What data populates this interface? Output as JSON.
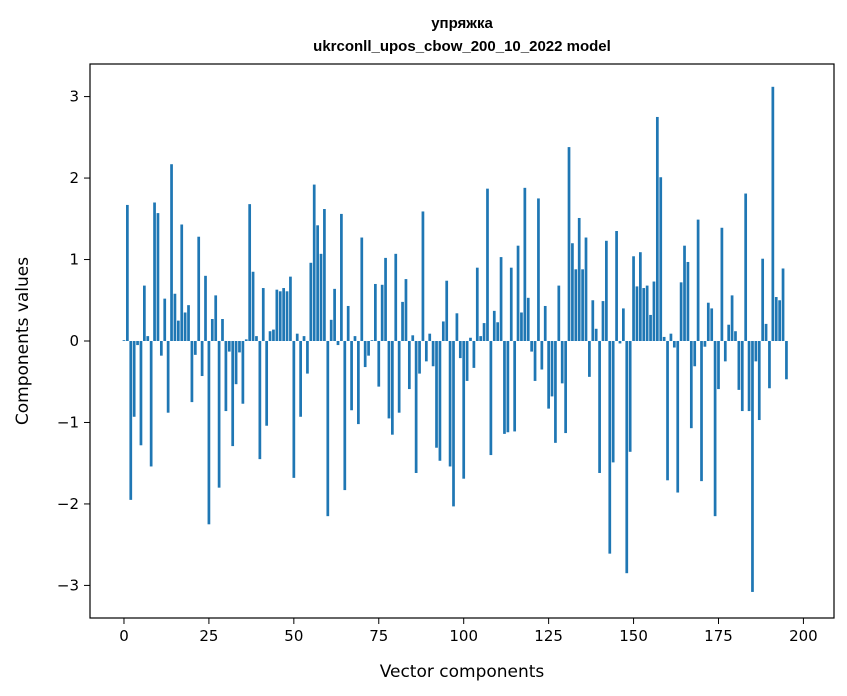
{
  "chart_data": {
    "type": "bar",
    "title_line1": "упряжка",
    "title_line2": "ukrconll_upos_cbow_200_10_2022 model",
    "xlabel": "Vector components",
    "ylabel": "Components values",
    "xlim": [
      -10,
      209
    ],
    "ylim": [
      -3.4,
      3.4
    ],
    "xticks": [
      0,
      25,
      50,
      75,
      100,
      125,
      150,
      175,
      200
    ],
    "yticks": [
      -3,
      -2,
      -1,
      0,
      1,
      2,
      3
    ],
    "xtick_labels": [
      "0",
      "25",
      "50",
      "75",
      "100",
      "125",
      "150",
      "175",
      "200"
    ],
    "ytick_labels": [
      "−3",
      "−2",
      "−1",
      "0",
      "1",
      "2",
      "3"
    ],
    "bar_color": "#1f77b4",
    "grid": false,
    "values": [
      0.01,
      1.67,
      -1.95,
      -0.93,
      -0.05,
      -1.28,
      0.68,
      0.06,
      -1.54,
      1.7,
      1.57,
      -0.18,
      0.52,
      -0.88,
      2.17,
      0.58,
      0.25,
      1.43,
      0.35,
      0.44,
      -0.75,
      -0.17,
      1.28,
      -0.43,
      0.8,
      -2.25,
      0.27,
      0.56,
      -1.8,
      0.27,
      -0.86,
      -0.13,
      -1.29,
      -0.53,
      -0.14,
      -0.77,
      0.02,
      1.68,
      0.85,
      0.06,
      -1.45,
      0.65,
      -1.04,
      0.12,
      0.14,
      0.63,
      0.61,
      0.65,
      0.61,
      0.79,
      -1.68,
      0.09,
      -0.93,
      0.06,
      -0.4,
      0.96,
      1.92,
      1.42,
      1.07,
      1.62,
      -2.15,
      0.26,
      0.64,
      -0.05,
      1.56,
      -1.83,
      0.43,
      -0.85,
      0.06,
      -1.02,
      1.27,
      -0.32,
      -0.18,
      0.01,
      0.7,
      -0.56,
      0.69,
      1.02,
      -0.95,
      -1.15,
      1.07,
      -0.88,
      0.48,
      0.76,
      -0.59,
      0.07,
      -1.62,
      -0.4,
      1.59,
      -0.25,
      0.09,
      -0.31,
      -1.31,
      -1.47,
      0.24,
      0.74,
      -1.54,
      -2.03,
      0.34,
      -0.21,
      -1.69,
      -0.49,
      0.04,
      -0.33,
      0.9,
      0.06,
      0.22,
      1.87,
      -1.4,
      0.37,
      0.23,
      1.03,
      -1.14,
      -1.12,
      0.9,
      -1.11,
      1.17,
      0.35,
      1.88,
      0.53,
      -0.13,
      -0.49,
      1.75,
      -0.35,
      0.43,
      -0.83,
      -0.68,
      -1.25,
      0.68,
      -0.52,
      -1.13,
      2.38,
      1.2,
      0.88,
      1.51,
      0.88,
      1.27,
      -0.44,
      0.5,
      0.15,
      -1.62,
      0.49,
      1.23,
      -2.61,
      -1.49,
      1.35,
      -0.03,
      0.4,
      -2.85,
      -1.36,
      1.04,
      0.67,
      1.09,
      0.65,
      0.68,
      0.32,
      0.73,
      2.75,
      2.01,
      0.05,
      -1.71,
      0.09,
      -0.08,
      -1.86,
      0.72,
      1.17,
      0.97,
      -1.07,
      -0.31,
      1.49,
      -1.72,
      -0.07,
      0.47,
      0.4,
      -2.15,
      -0.59,
      1.39,
      -0.25,
      0.2,
      0.56,
      0.12,
      -0.6,
      -0.86,
      1.81,
      -0.86,
      -3.08,
      -0.25,
      -0.97,
      1.01,
      0.21,
      -0.58,
      3.12,
      0.54,
      0.5,
      0.89,
      -0.47
    ]
  }
}
